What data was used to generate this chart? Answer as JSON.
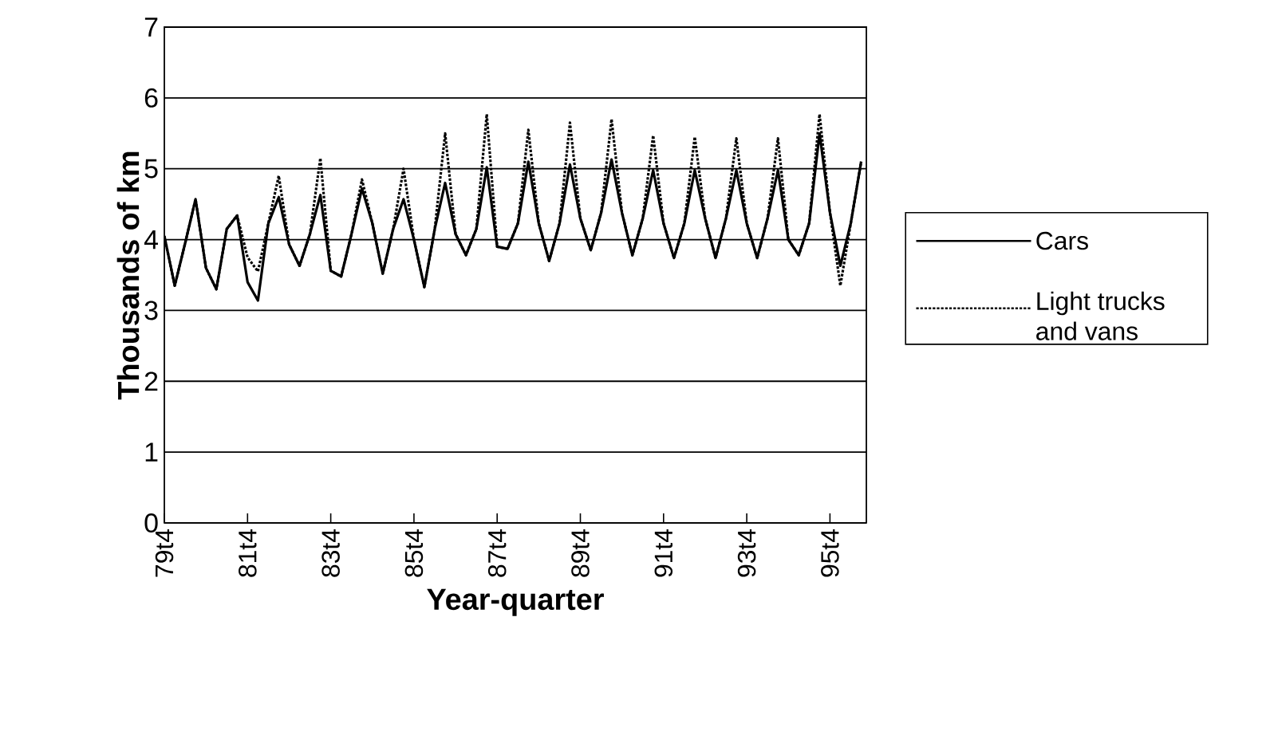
{
  "chart_data": {
    "type": "line",
    "xlabel": "Year-quarter",
    "ylabel": "Thousands of km",
    "categories": [
      "79t4",
      null,
      null,
      null,
      null,
      null,
      null,
      null,
      "81t4",
      null,
      null,
      null,
      null,
      null,
      null,
      null,
      "83t4",
      null,
      null,
      null,
      null,
      null,
      null,
      null,
      "85t4",
      null,
      null,
      null,
      null,
      null,
      null,
      null,
      "87t4",
      null,
      null,
      null,
      null,
      null,
      null,
      null,
      "89t4",
      null,
      null,
      null,
      null,
      null,
      null,
      null,
      "91t4",
      null,
      null,
      null,
      null,
      null,
      null,
      null,
      "93t4",
      null,
      null,
      null,
      null,
      null,
      null,
      null,
      "95t4",
      null,
      null,
      null
    ],
    "series": [
      {
        "name": "Cars",
        "color": "#000000",
        "line_style": "solid",
        "values": [
          4.05,
          3.35,
          3.95,
          4.57,
          3.6,
          3.3,
          4.15,
          4.34,
          3.4,
          3.14,
          4.23,
          4.6,
          3.93,
          3.63,
          4.08,
          4.63,
          3.56,
          3.48,
          4.08,
          4.72,
          4.23,
          3.52,
          4.15,
          4.57,
          4.0,
          3.33,
          4.15,
          4.8,
          4.08,
          3.78,
          4.15,
          5.02,
          3.9,
          3.87,
          4.23,
          5.1,
          4.23,
          3.7,
          4.23,
          5.06,
          4.3,
          3.85,
          4.38,
          5.13,
          4.38,
          3.78,
          4.3,
          4.98,
          4.23,
          3.74,
          4.23,
          4.98,
          4.3,
          3.74,
          4.3,
          4.98,
          4.23,
          3.74,
          4.3,
          4.98,
          4.0,
          3.78,
          4.23,
          5.5,
          4.38,
          3.63,
          4.23,
          5.1
        ]
      },
      {
        "name": "Light trucks and vans",
        "color": "#000000",
        "line_style": "dotted",
        "values": [
          4.05,
          3.35,
          3.95,
          4.57,
          3.6,
          3.3,
          4.15,
          4.34,
          3.75,
          3.55,
          4.23,
          4.9,
          3.93,
          3.63,
          4.08,
          5.15,
          3.56,
          3.48,
          4.08,
          4.85,
          4.23,
          3.52,
          4.15,
          5.0,
          4.0,
          3.33,
          4.15,
          5.5,
          4.08,
          3.78,
          4.15,
          5.77,
          3.9,
          3.87,
          4.23,
          5.55,
          4.23,
          3.7,
          4.23,
          5.65,
          4.3,
          3.85,
          4.38,
          5.7,
          4.38,
          3.78,
          4.3,
          5.47,
          4.23,
          3.74,
          4.23,
          5.45,
          4.3,
          3.74,
          4.3,
          5.43,
          4.23,
          3.74,
          4.3,
          5.43,
          4.0,
          3.78,
          4.23,
          5.77,
          4.38,
          3.35,
          4.23,
          5.1
        ]
      }
    ],
    "ylim": [
      0,
      7
    ],
    "yticks": [
      0,
      1,
      2,
      3,
      4,
      5,
      6,
      7
    ],
    "grid": "y",
    "legend": "right",
    "marker": "none"
  }
}
